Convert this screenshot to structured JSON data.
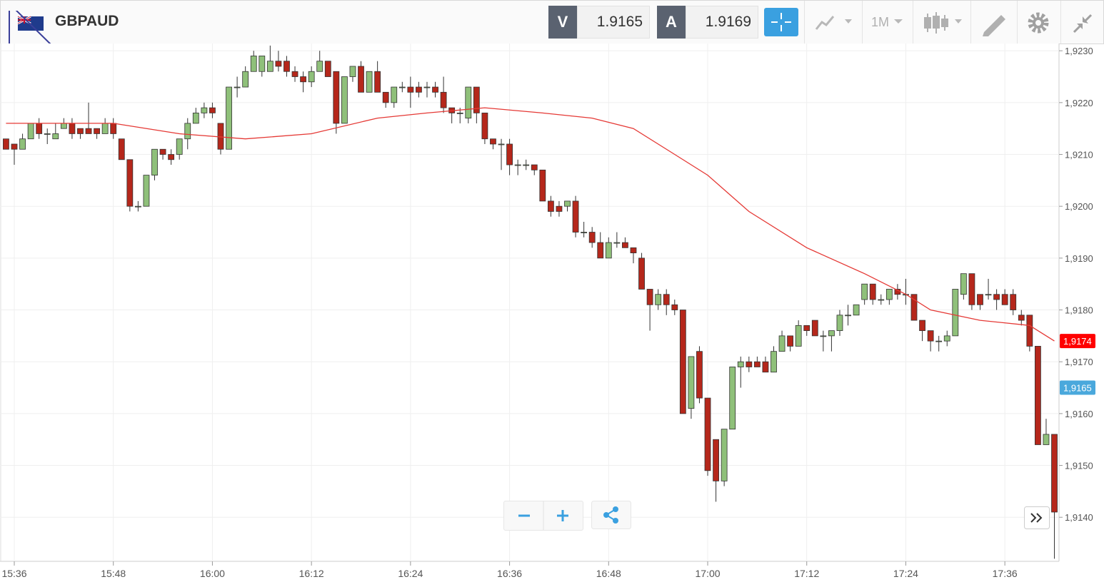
{
  "header": {
    "symbol": "GBPAUD",
    "bid_label": "V",
    "bid": 1.9165,
    "ask_label": "A",
    "ask": 1.9169,
    "timeframe": "1M"
  },
  "chart_data": {
    "type": "candlestick",
    "up_color": "#8fc07a",
    "down_color": "#b5271b",
    "outline_color": "#333333",
    "xlim": [
      934.27,
      1062.56
    ],
    "ylim": [
      1.91315,
      1.92314
    ],
    "grid": true,
    "xticks": [
      {
        "value": 936,
        "label": "15:36"
      },
      {
        "value": 948,
        "label": "15:48"
      },
      {
        "value": 960,
        "label": "16:00"
      },
      {
        "value": 972,
        "label": "16:12"
      },
      {
        "value": 984,
        "label": "16:24"
      },
      {
        "value": 996,
        "label": "16:36"
      },
      {
        "value": 1008,
        "label": "16:48"
      },
      {
        "value": 1020,
        "label": "17:00"
      },
      {
        "value": 1032,
        "label": "17:12"
      },
      {
        "value": 1044,
        "label": "17:24"
      },
      {
        "value": 1056,
        "label": "17:36"
      }
    ],
    "yticks": [
      {
        "value": 1.914,
        "label": "1,9140"
      },
      {
        "value": 1.915,
        "label": "1,9150"
      },
      {
        "value": 1.916,
        "label": "1,9160"
      },
      {
        "value": 1.917,
        "label": "1,9170"
      },
      {
        "value": 1.918,
        "label": "1,9180"
      },
      {
        "value": 1.919,
        "label": "1,9190"
      },
      {
        "value": 1.92,
        "label": "1,9200"
      },
      {
        "value": 1.921,
        "label": "1,9210"
      },
      {
        "value": 1.922,
        "label": "1,9220"
      },
      {
        "value": 1.923,
        "label": "1,9230"
      }
    ],
    "x": [
      935,
      936,
      937,
      938,
      939,
      940,
      941,
      942,
      943,
      944,
      945,
      946,
      947,
      948,
      949,
      950,
      951,
      952,
      953,
      954,
      955,
      956,
      957,
      958,
      959,
      960,
      961,
      962,
      963,
      964,
      965,
      966,
      967,
      968,
      969,
      970,
      971,
      972,
      973,
      974,
      975,
      976,
      977,
      978,
      979,
      980,
      981,
      982,
      983,
      984,
      985,
      986,
      987,
      988,
      989,
      990,
      991,
      992,
      993,
      994,
      995,
      996,
      997,
      998,
      999,
      1000,
      1001,
      1002,
      1003,
      1004,
      1005,
      1006,
      1007,
      1008,
      1009,
      1010,
      1011,
      1012,
      1013,
      1014,
      1015,
      1016,
      1017,
      1018,
      1019,
      1020,
      1021,
      1022,
      1023,
      1024,
      1025,
      1026,
      1027,
      1028,
      1029,
      1030,
      1031,
      1032,
      1033,
      1034,
      1035,
      1036,
      1037,
      1038,
      1039,
      1040,
      1041,
      1042,
      1043,
      1044,
      1045,
      1046,
      1047,
      1048,
      1049,
      1050,
      1051,
      1052,
      1053,
      1054,
      1055,
      1056,
      1057,
      1058,
      1059,
      1060,
      1061,
      1062
    ],
    "open": [
      1.9213,
      1.9212,
      1.9211,
      1.9213,
      1.9216,
      1.9214,
      1.9213,
      1.9215,
      1.9216,
      1.9215,
      1.9215,
      1.9215,
      1.9214,
      1.9216,
      1.9213,
      1.9209,
      1.92,
      1.92,
      1.9206,
      1.9211,
      1.921,
      1.921,
      1.9213,
      1.9216,
      1.9218,
      1.9219,
      1.9216,
      1.9211,
      1.9223,
      1.9223,
      1.9226,
      1.9226,
      1.9226,
      1.9228,
      1.9228,
      1.9226,
      1.9225,
      1.9224,
      1.9226,
      1.9228,
      1.9226,
      1.9216,
      1.9225,
      1.9227,
      1.9222,
      1.9226,
      1.9222,
      1.922,
      1.9223,
      1.9223,
      1.9223,
      1.9223,
      1.9223,
      1.9222,
      1.9219,
      1.9218,
      1.9217,
      1.9223,
      1.9218,
      1.9213,
      1.9212,
      1.9212,
      1.9208,
      1.9208,
      1.9208,
      1.9207,
      1.9201,
      1.92,
      1.92,
      1.9201,
      1.9195,
      1.9195,
      1.9193,
      1.919,
      1.9193,
      1.9193,
      1.9192,
      1.919,
      1.9184,
      1.9181,
      1.9183,
      1.9181,
      1.918,
      1.9161,
      1.9172,
      1.9163,
      1.9155,
      1.9147,
      1.9157,
      1.9169,
      1.917,
      1.917,
      1.917,
      1.9168,
      1.9172,
      1.9175,
      1.9173,
      1.9177,
      1.9178,
      1.9175,
      1.9175,
      1.9176,
      1.9179,
      1.9179,
      1.9182,
      1.9185,
      1.9182,
      1.9182,
      1.9184,
      1.9183,
      1.9183,
      1.9178,
      1.9176,
      1.9174,
      1.9174,
      1.9175,
      1.9183,
      1.9187,
      1.9183,
      1.9183,
      1.9183,
      1.9183,
      1.9183,
      1.9179,
      1.9179,
      1.9173,
      1.9154,
      1.9156
    ],
    "high": [
      1.9213,
      1.9212,
      1.9214,
      1.9216,
      1.9217,
      1.9215,
      1.9216,
      1.9217,
      1.9217,
      1.9215,
      1.922,
      1.9215,
      1.9217,
      1.9217,
      1.9213,
      1.9209,
      1.9201,
      1.9206,
      1.9211,
      1.9211,
      1.9211,
      1.9213,
      1.9217,
      1.9219,
      1.922,
      1.922,
      1.9216,
      1.9223,
      1.9225,
      1.9227,
      1.923,
      1.9229,
      1.9231,
      1.923,
      1.9229,
      1.9227,
      1.9226,
      1.9227,
      1.923,
      1.9228,
      1.9226,
      1.9225,
      1.9227,
      1.9228,
      1.9226,
      1.9228,
      1.9222,
      1.9223,
      1.9224,
      1.9225,
      1.9224,
      1.9224,
      1.9224,
      1.9225,
      1.9219,
      1.9219,
      1.9223,
      1.9223,
      1.9218,
      1.9213,
      1.9213,
      1.9213,
      1.9209,
      1.9209,
      1.9208,
      1.9207,
      1.9202,
      1.9201,
      1.9201,
      1.9202,
      1.9197,
      1.9196,
      1.9195,
      1.9194,
      1.9195,
      1.9194,
      1.9192,
      1.9191,
      1.9184,
      1.9184,
      1.9184,
      1.9182,
      1.918,
      1.9171,
      1.9173,
      1.9163,
      1.9155,
      1.9157,
      1.9169,
      1.9171,
      1.9171,
      1.9171,
      1.9171,
      1.9173,
      1.9176,
      1.9175,
      1.9178,
      1.9177,
      1.9178,
      1.9176,
      1.9176,
      1.918,
      1.9181,
      1.9181,
      1.9185,
      1.9185,
      1.9183,
      1.9184,
      1.9185,
      1.9186,
      1.9183,
      1.9178,
      1.9176,
      1.9175,
      1.9176,
      1.9184,
      1.9187,
      1.9187,
      1.9183,
      1.9186,
      1.9184,
      1.9184,
      1.9184,
      1.918,
      1.9179,
      1.9173,
      1.9159,
      1.9156
    ],
    "low": [
      1.9211,
      1.9208,
      1.9211,
      1.9213,
      1.9213,
      1.9212,
      1.9213,
      1.9215,
      1.9213,
      1.9213,
      1.9214,
      1.9213,
      1.9214,
      1.9213,
      1.9209,
      1.9199,
      1.9199,
      1.92,
      1.9205,
      1.9209,
      1.9208,
      1.9209,
      1.9211,
      1.9216,
      1.9217,
      1.9217,
      1.921,
      1.9211,
      1.9221,
      1.9223,
      1.9226,
      1.9225,
      1.9226,
      1.9226,
      1.9225,
      1.9224,
      1.9222,
      1.9223,
      1.9226,
      1.9225,
      1.9214,
      1.9216,
      1.9224,
      1.9222,
      1.9222,
      1.9222,
      1.9219,
      1.9219,
      1.9222,
      1.9219,
      1.9221,
      1.9221,
      1.9221,
      1.9218,
      1.9216,
      1.9216,
      1.9216,
      1.9216,
      1.9212,
      1.9211,
      1.9207,
      1.9206,
      1.9206,
      1.9207,
      1.9206,
      1.9201,
      1.9198,
      1.9198,
      1.9199,
      1.9194,
      1.9194,
      1.9192,
      1.919,
      1.919,
      1.9192,
      1.9192,
      1.9189,
      1.9184,
      1.9176,
      1.918,
      1.9179,
      1.9179,
      1.916,
      1.9159,
      1.9162,
      1.9148,
      1.9143,
      1.9146,
      1.9157,
      1.9165,
      1.9168,
      1.9169,
      1.9168,
      1.9168,
      1.9172,
      1.9172,
      1.9173,
      1.9175,
      1.9175,
      1.9172,
      1.9172,
      1.9175,
      1.9177,
      1.9179,
      1.9181,
      1.9181,
      1.9181,
      1.9181,
      1.9182,
      1.9181,
      1.9178,
      1.9174,
      1.9172,
      1.9172,
      1.9173,
      1.9175,
      1.9182,
      1.918,
      1.918,
      1.9182,
      1.918,
      1.9181,
      1.9179,
      1.9177,
      1.9172,
      1.9154,
      1.9154,
      1.9132
    ],
    "close": [
      1.9211,
      1.9211,
      1.9213,
      1.9216,
      1.9214,
      1.9214,
      1.9214,
      1.9216,
      1.9214,
      1.9214,
      1.9214,
      1.9214,
      1.9216,
      1.9214,
      1.9209,
      1.92,
      1.92,
      1.9206,
      1.9211,
      1.921,
      1.9209,
      1.9213,
      1.9216,
      1.9218,
      1.9219,
      1.9218,
      1.9211,
      1.9223,
      1.9223,
      1.9226,
      1.9229,
      1.9229,
      1.9228,
      1.9227,
      1.9226,
      1.9225,
      1.9224,
      1.9226,
      1.9228,
      1.9225,
      1.9216,
      1.9225,
      1.9227,
      1.9222,
      1.9226,
      1.9222,
      1.922,
      1.9223,
      1.9223,
      1.9222,
      1.9222,
      1.9223,
      1.9222,
      1.9219,
      1.9218,
      1.9218,
      1.9223,
      1.9218,
      1.9213,
      1.9212,
      1.9212,
      1.9208,
      1.9208,
      1.9208,
      1.9207,
      1.9201,
      1.9199,
      1.9199,
      1.9201,
      1.9195,
      1.9195,
      1.9193,
      1.919,
      1.9193,
      1.9193,
      1.9192,
      1.9191,
      1.9184,
      1.9181,
      1.9183,
      1.9181,
      1.918,
      1.916,
      1.9171,
      1.9163,
      1.9149,
      1.9147,
      1.9157,
      1.9169,
      1.917,
      1.9169,
      1.9169,
      1.9168,
      1.9172,
      1.9175,
      1.9173,
      1.9177,
      1.9176,
      1.9175,
      1.9175,
      1.9176,
      1.9179,
      1.9179,
      1.9181,
      1.9185,
      1.9182,
      1.9182,
      1.9184,
      1.9183,
      1.9183,
      1.9178,
      1.9176,
      1.9174,
      1.9174,
      1.9175,
      1.9184,
      1.9187,
      1.9181,
      1.9181,
      1.9183,
      1.9182,
      1.9181,
      1.918,
      1.9178,
      1.9173,
      1.9154,
      1.9156,
      1.9141
    ],
    "ma": {
      "color": "#e53935",
      "x": [
        935,
        948,
        956,
        964,
        972,
        980,
        986,
        993,
        1000,
        1006,
        1011,
        1016,
        1020,
        1025,
        1032,
        1039,
        1044,
        1047,
        1053,
        1059,
        1062
      ],
      "values": [
        1.9216,
        1.9216,
        1.9214,
        1.9213,
        1.9214,
        1.9217,
        1.9218,
        1.9219,
        1.9218,
        1.9217,
        1.9215,
        1.921,
        1.9206,
        1.9199,
        1.9192,
        1.9187,
        1.9183,
        1.918,
        1.9178,
        1.9177,
        1.9174
      ]
    },
    "price_labels": [
      {
        "value": 1.9174,
        "label": "1,9174",
        "color": "#ff0000"
      },
      {
        "value": 1.9165,
        "label": "1,9165",
        "color": "#4aa8dc"
      }
    ]
  }
}
